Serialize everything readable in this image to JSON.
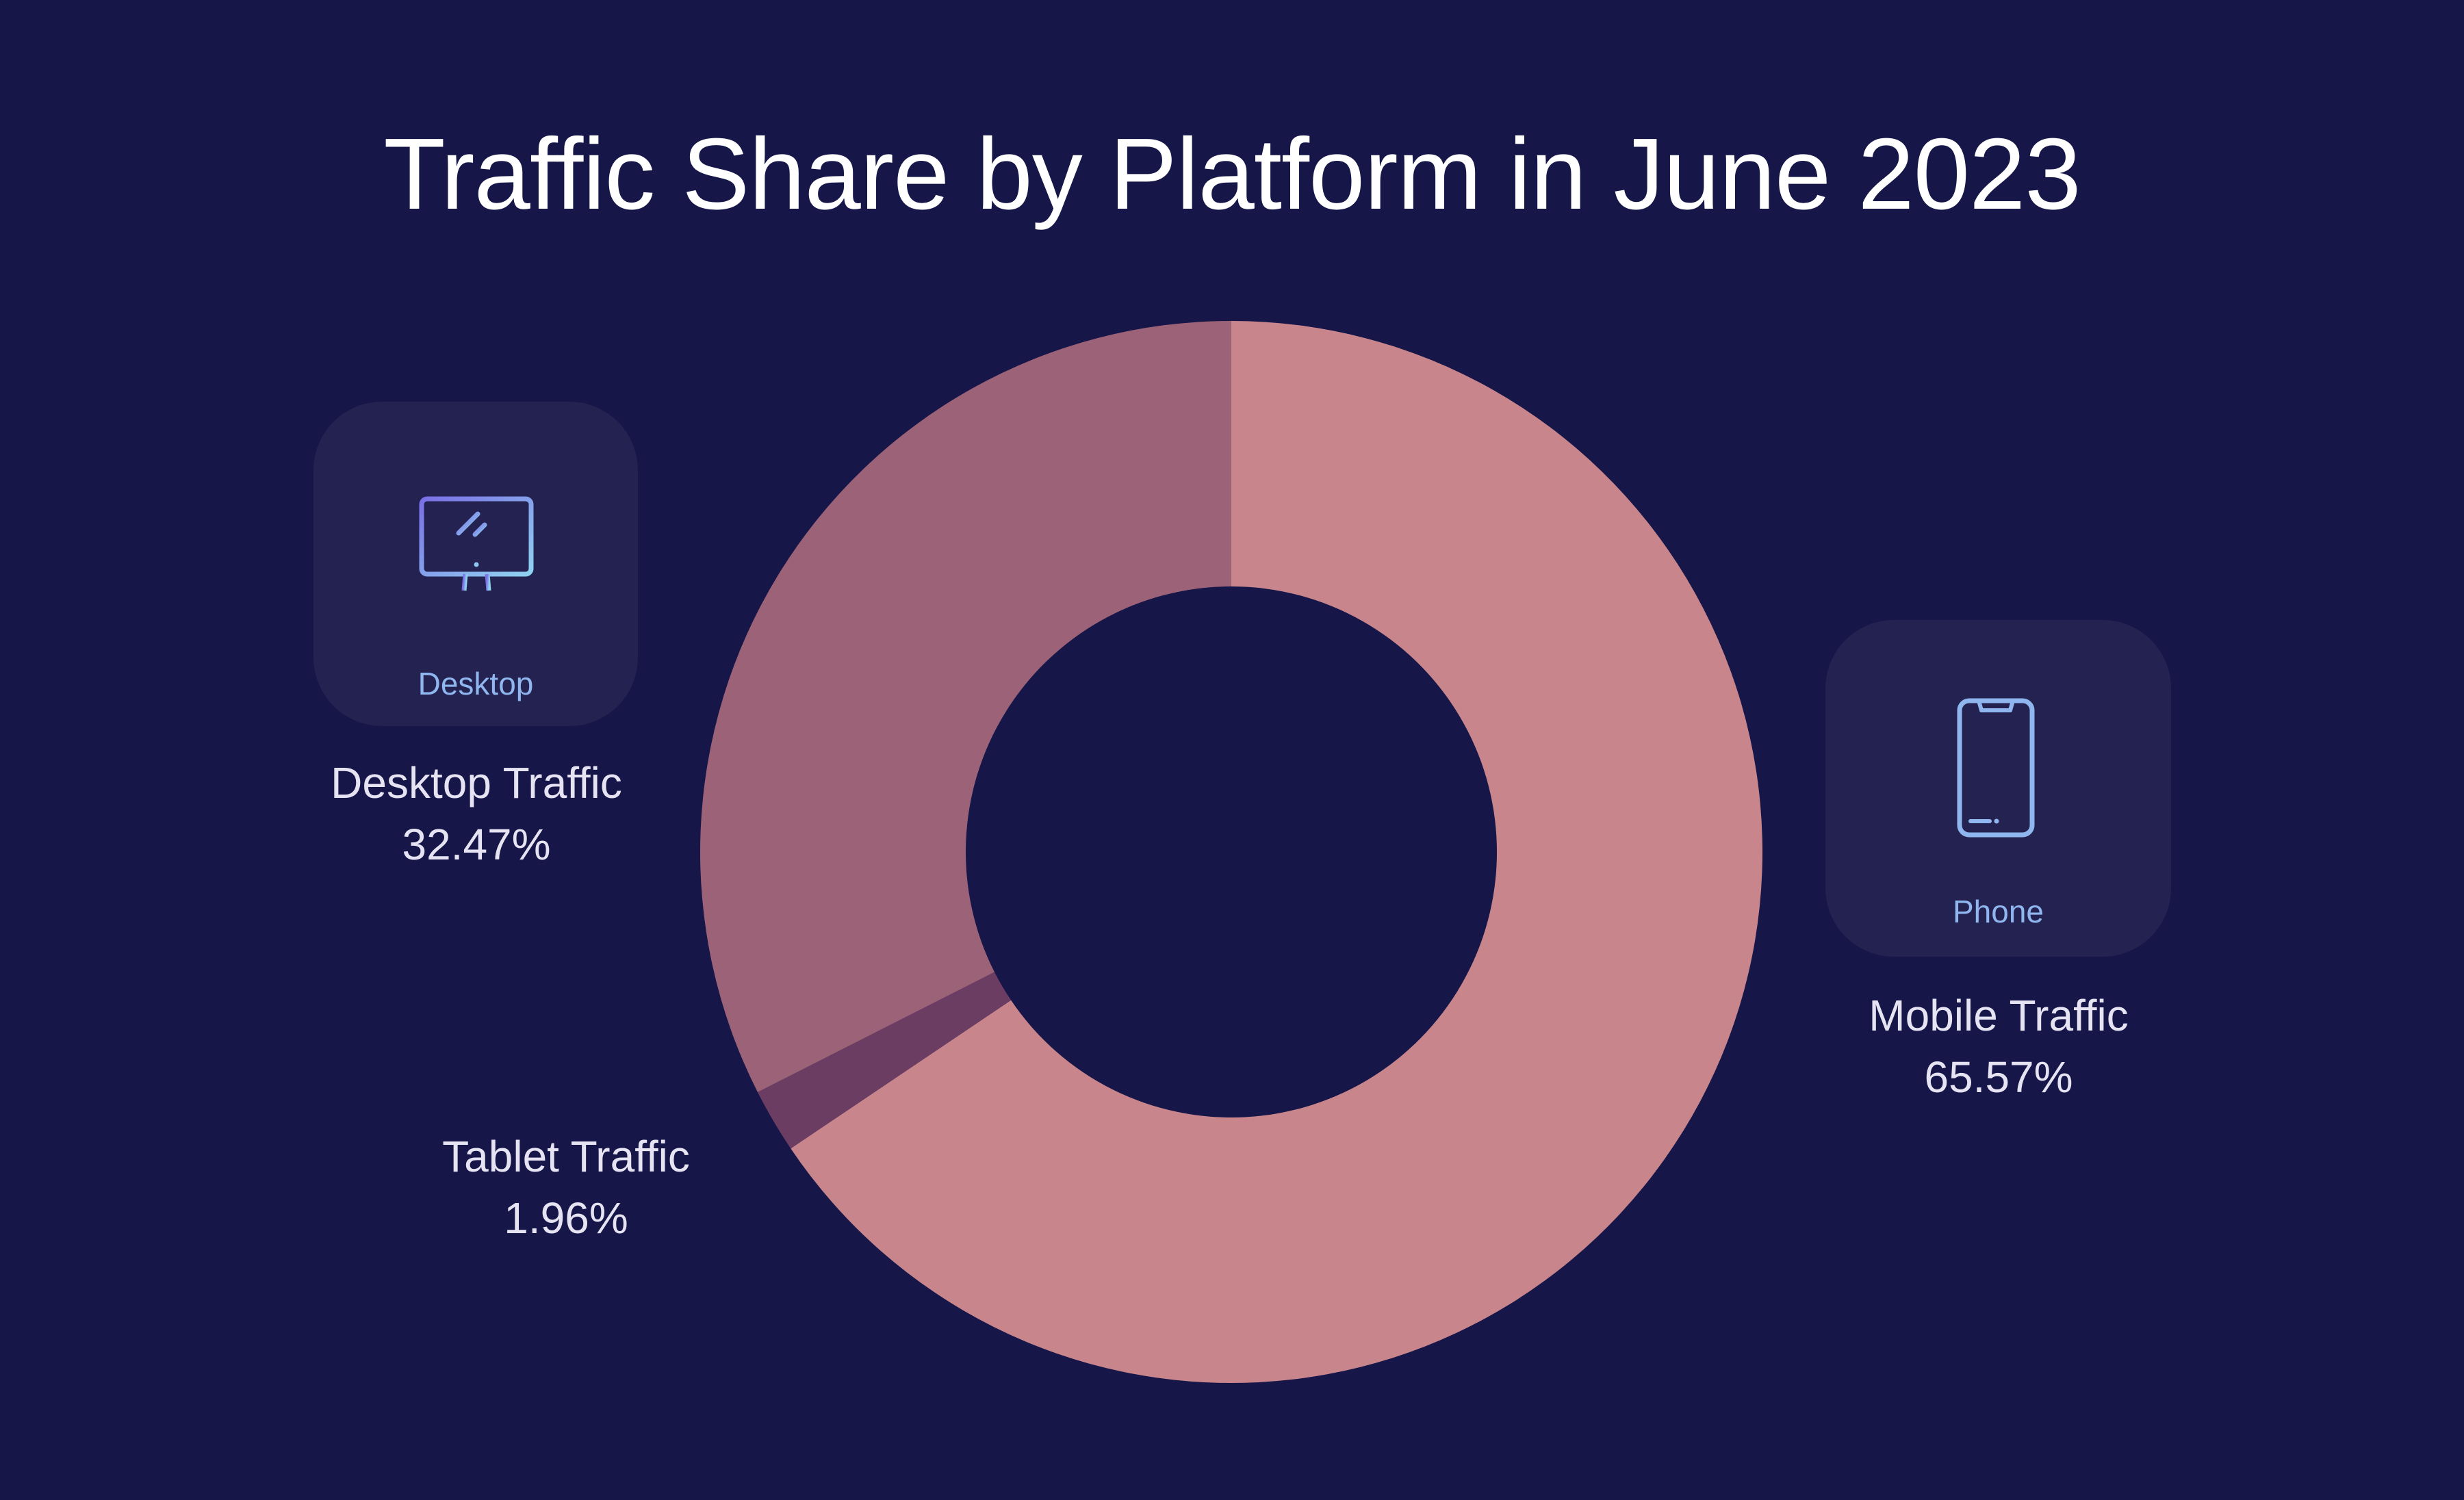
{
  "title": "Traffic Share by Platform in June 2023",
  "colors": {
    "background": "#161649",
    "card": "#232250",
    "card_label": "#8fb6ee",
    "text": "#e6e3f2"
  },
  "cards": {
    "desktop": {
      "label": "Desktop",
      "icon": "desktop-monitor-icon"
    },
    "phone": {
      "label": "Phone",
      "icon": "smartphone-icon"
    }
  },
  "chart_data": {
    "type": "pie",
    "variant": "donut",
    "title": "Traffic Share by Platform in June 2023",
    "slices": [
      {
        "label": "Mobile Traffic",
        "value": 65.57,
        "display": "65.57%",
        "color": "#c8868c"
      },
      {
        "label": "Tablet Traffic",
        "value": 1.96,
        "display": "1.96%",
        "color": "#6c3d63"
      },
      {
        "label": "Desktop Traffic",
        "value": 32.47,
        "display": "32.47%",
        "color": "#9c6378"
      }
    ],
    "start_angle": "12 o'clock",
    "direction": "clockwise",
    "legend": "none"
  }
}
